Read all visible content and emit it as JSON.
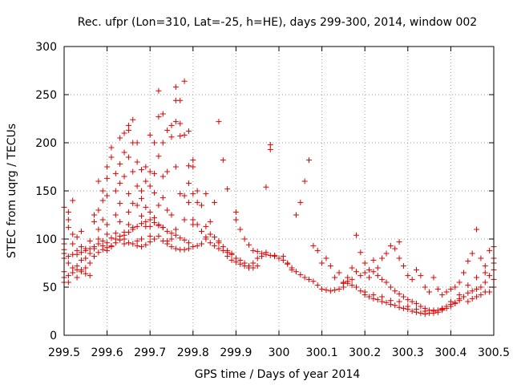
{
  "chart_data": {
    "type": "scatter",
    "title": "Rec. ufpr (Lon=310, Lat=-25, h=HE), days 299-300, 2014, window 002",
    "xlabel": "GPS time / Days of year 2014",
    "ylabel": "STEC from uqrg / TECUs",
    "xlim": [
      299.5,
      300.5
    ],
    "ylim": [
      0,
      300
    ],
    "grid": true,
    "marker": "+",
    "color": "#dd0000",
    "x_ticks": [
      299.5,
      299.6,
      299.7,
      299.8,
      299.9,
      300,
      300.1,
      300.2,
      300.3,
      300.4,
      300.5
    ],
    "x_tick_labels": [
      "299.5",
      "299.6",
      "299.7",
      "299.8",
      "299.9",
      "300",
      "300.1",
      "300.2",
      "300.3",
      "300.4",
      "300.5"
    ],
    "y_ticks": [
      0,
      50,
      100,
      150,
      200,
      250,
      300
    ],
    "y_tick_labels": [
      "0",
      "50",
      "100",
      "150",
      "200",
      "250",
      "300"
    ],
    "points": [
      [
        299.5,
        133
      ],
      [
        299.51,
        128
      ],
      [
        299.51,
        120
      ],
      [
        299.51,
        112
      ],
      [
        299.52,
        140
      ],
      [
        299.5,
        100
      ],
      [
        299.5,
        95
      ],
      [
        299.5,
        89
      ],
      [
        299.5,
        66
      ],
      [
        299.5,
        60
      ],
      [
        299.5,
        55
      ],
      [
        299.51,
        55
      ],
      [
        299.52,
        105
      ],
      [
        299.52,
        95
      ],
      [
        299.53,
        88
      ],
      [
        299.53,
        102
      ],
      [
        299.54,
        108
      ],
      [
        299.54,
        92
      ],
      [
        299.53,
        72
      ],
      [
        299.54,
        78
      ],
      [
        299.52,
        65
      ],
      [
        299.51,
        62
      ],
      [
        299.53,
        60
      ],
      [
        299.54,
        68
      ],
      [
        299.55,
        70
      ],
      [
        299.55,
        80
      ],
      [
        299.56,
        85
      ],
      [
        299.56,
        98
      ],
      [
        299.57,
        125
      ],
      [
        299.57,
        118
      ],
      [
        299.57,
        90
      ],
      [
        299.56,
        75
      ],
      [
        299.55,
        90
      ],
      [
        299.58,
        160
      ],
      [
        299.58,
        130
      ],
      [
        299.58,
        110
      ],
      [
        299.58,
        100
      ],
      [
        299.59,
        150
      ],
      [
        299.59,
        140
      ],
      [
        299.59,
        120
      ],
      [
        299.6,
        175
      ],
      [
        299.6,
        163
      ],
      [
        299.6,
        145
      ],
      [
        299.6,
        115
      ],
      [
        299.6,
        105
      ],
      [
        299.59,
        93
      ],
      [
        299.6,
        88
      ],
      [
        299.61,
        92
      ],
      [
        299.61,
        195
      ],
      [
        299.61,
        185
      ],
      [
        299.62,
        168
      ],
      [
        299.62,
        150
      ],
      [
        299.62,
        125
      ],
      [
        299.62,
        100
      ],
      [
        299.63,
        205
      ],
      [
        299.63,
        178
      ],
      [
        299.63,
        158
      ],
      [
        299.63,
        137
      ],
      [
        299.63,
        118
      ],
      [
        299.64,
        210
      ],
      [
        299.64,
        190
      ],
      [
        299.64,
        165
      ],
      [
        299.64,
        107
      ],
      [
        299.64,
        95
      ],
      [
        299.65,
        213
      ],
      [
        299.65,
        218
      ],
      [
        299.65,
        185
      ],
      [
        299.65,
        147
      ],
      [
        299.65,
        128
      ],
      [
        299.65,
        115
      ],
      [
        299.66,
        224
      ],
      [
        299.66,
        200
      ],
      [
        299.66,
        170
      ],
      [
        299.66,
        137
      ],
      [
        299.66,
        112
      ],
      [
        299.67,
        200
      ],
      [
        299.67,
        180
      ],
      [
        299.67,
        155
      ],
      [
        299.67,
        135
      ],
      [
        299.67,
        98
      ],
      [
        299.68,
        172
      ],
      [
        299.68,
        150
      ],
      [
        299.68,
        142
      ],
      [
        299.68,
        124
      ],
      [
        299.68,
        100
      ],
      [
        299.69,
        175
      ],
      [
        299.69,
        160
      ],
      [
        299.69,
        133
      ],
      [
        299.69,
        113
      ],
      [
        299.7,
        208
      ],
      [
        299.7,
        170
      ],
      [
        299.7,
        155
      ],
      [
        299.7,
        128
      ],
      [
        299.7,
        113
      ],
      [
        299.7,
        103
      ],
      [
        299.71,
        200
      ],
      [
        299.71,
        168
      ],
      [
        299.71,
        148
      ],
      [
        299.71,
        122
      ],
      [
        299.72,
        254
      ],
      [
        299.72,
        227
      ],
      [
        299.72,
        186
      ],
      [
        299.72,
        135
      ],
      [
        299.72,
        115
      ],
      [
        299.73,
        230
      ],
      [
        299.73,
        200
      ],
      [
        299.73,
        165
      ],
      [
        299.73,
        143
      ],
      [
        299.73,
        112
      ],
      [
        299.74,
        213
      ],
      [
        299.74,
        170
      ],
      [
        299.74,
        130
      ],
      [
        299.74,
        98
      ],
      [
        299.75,
        218
      ],
      [
        299.75,
        206
      ],
      [
        299.75,
        125
      ],
      [
        299.75,
        100
      ],
      [
        299.76,
        258
      ],
      [
        299.76,
        244
      ],
      [
        299.76,
        222
      ],
      [
        299.76,
        175
      ],
      [
        299.76,
        110
      ],
      [
        299.77,
        244
      ],
      [
        299.77,
        220
      ],
      [
        299.77,
        207
      ],
      [
        299.77,
        147
      ],
      [
        299.78,
        264
      ],
      [
        299.78,
        208
      ],
      [
        299.78,
        145
      ],
      [
        299.78,
        120
      ],
      [
        299.79,
        212
      ],
      [
        299.79,
        176
      ],
      [
        299.79,
        158
      ],
      [
        299.79,
        138
      ],
      [
        299.8,
        182
      ],
      [
        299.8,
        175
      ],
      [
        299.8,
        147
      ],
      [
        299.8,
        115
      ],
      [
        299.81,
        138
      ],
      [
        299.81,
        150
      ],
      [
        299.82,
        135
      ],
      [
        299.83,
        147
      ],
      [
        299.83,
        113
      ],
      [
        299.84,
        118
      ],
      [
        299.85,
        138
      ],
      [
        299.86,
        222
      ],
      [
        299.86,
        96
      ],
      [
        299.87,
        182
      ],
      [
        299.88,
        152
      ],
      [
        299.88,
        88
      ],
      [
        299.89,
        85
      ],
      [
        299.9,
        128
      ],
      [
        299.9,
        120
      ],
      [
        299.91,
        110
      ],
      [
        299.92,
        100
      ],
      [
        299.93,
        94
      ],
      [
        299.94,
        88
      ],
      [
        299.95,
        87
      ],
      [
        299.96,
        85
      ],
      [
        299.97,
        154
      ],
      [
        299.98,
        198
      ],
      [
        299.98,
        193
      ],
      [
        299.98,
        83
      ],
      [
        299.99,
        83
      ],
      [
        300.01,
        82
      ],
      [
        300.02,
        75
      ],
      [
        300.03,
        68
      ],
      [
        300.04,
        125
      ],
      [
        300.05,
        138
      ],
      [
        300.06,
        160
      ],
      [
        300.07,
        182
      ],
      [
        300.08,
        93
      ],
      [
        300.09,
        88
      ],
      [
        300.1,
        75
      ],
      [
        300.11,
        80
      ],
      [
        300.12,
        72
      ],
      [
        300.13,
        60
      ],
      [
        300.14,
        65
      ],
      [
        300.15,
        55
      ],
      [
        300.16,
        60
      ],
      [
        300.17,
        70
      ],
      [
        300.18,
        104
      ],
      [
        300.19,
        86
      ],
      [
        300.2,
        75
      ],
      [
        300.21,
        60
      ],
      [
        300.22,
        78
      ],
      [
        300.23,
        70
      ],
      [
        300.24,
        80
      ],
      [
        300.25,
        85
      ],
      [
        300.26,
        93
      ],
      [
        300.27,
        90
      ],
      [
        300.28,
        97
      ],
      [
        300.28,
        80
      ],
      [
        300.29,
        72
      ],
      [
        300.3,
        62
      ],
      [
        300.31,
        58
      ],
      [
        300.32,
        68
      ],
      [
        300.33,
        62
      ],
      [
        300.34,
        50
      ],
      [
        300.35,
        45
      ],
      [
        300.36,
        60
      ],
      [
        300.37,
        48
      ],
      [
        300.38,
        42
      ],
      [
        300.39,
        45
      ],
      [
        300.4,
        48
      ],
      [
        300.41,
        50
      ],
      [
        300.42,
        55
      ],
      [
        300.43,
        65
      ],
      [
        300.44,
        77
      ],
      [
        300.45,
        85
      ],
      [
        300.46,
        110
      ],
      [
        300.47,
        80
      ],
      [
        300.48,
        72
      ],
      [
        300.49,
        88
      ],
      [
        300.5,
        92
      ],
      [
        300.5,
        80
      ],
      [
        300.5,
        68
      ],
      [
        300.5,
        58
      ],
      [
        300.5,
        50
      ],
      [
        300.49,
        45
      ],
      [
        300.48,
        45
      ],
      [
        300.47,
        42
      ],
      [
        300.46,
        40
      ],
      [
        300.45,
        38
      ],
      [
        300.44,
        35
      ],
      [
        300.43,
        40
      ],
      [
        300.42,
        38
      ],
      [
        300.41,
        33
      ],
      [
        300.4,
        30
      ],
      [
        300.39,
        28
      ],
      [
        300.38,
        26
      ],
      [
        300.37,
        24
      ],
      [
        300.36,
        23
      ],
      [
        300.35,
        23
      ],
      [
        300.34,
        22
      ],
      [
        300.33,
        23
      ],
      [
        300.32,
        24
      ],
      [
        300.31,
        25
      ],
      [
        300.3,
        27
      ],
      [
        300.29,
        28
      ],
      [
        300.28,
        29
      ],
      [
        300.27,
        31
      ],
      [
        300.26,
        32
      ],
      [
        300.25,
        34
      ],
      [
        300.24,
        35
      ],
      [
        300.23,
        37
      ],
      [
        300.22,
        38
      ],
      [
        300.21,
        40
      ],
      [
        300.2,
        42
      ],
      [
        300.19,
        46
      ],
      [
        300.18,
        50
      ],
      [
        300.17,
        52
      ],
      [
        300.16,
        54
      ],
      [
        300.15,
        50
      ],
      [
        300.14,
        48
      ],
      [
        300.13,
        47
      ],
      [
        300.12,
        46
      ],
      [
        300.11,
        47
      ],
      [
        300.1,
        48
      ],
      [
        300.09,
        52
      ],
      [
        300.08,
        56
      ],
      [
        300.07,
        58
      ],
      [
        300.06,
        60
      ],
      [
        300.05,
        63
      ],
      [
        300.04,
        66
      ],
      [
        300.03,
        70
      ],
      [
        300.02,
        74
      ],
      [
        300.01,
        78
      ],
      [
        300.0,
        80
      ],
      [
        299.99,
        82
      ],
      [
        299.97,
        84
      ],
      [
        299.95,
        72
      ],
      [
        299.94,
        70
      ],
      [
        299.93,
        72
      ],
      [
        299.92,
        75
      ],
      [
        299.91,
        78
      ],
      [
        299.9,
        80
      ],
      [
        299.89,
        84
      ],
      [
        299.88,
        86
      ],
      [
        299.87,
        92
      ],
      [
        299.86,
        98
      ],
      [
        299.85,
        102
      ],
      [
        299.84,
        105
      ],
      [
        299.83,
        100
      ],
      [
        299.82,
        95
      ],
      [
        299.81,
        93
      ],
      [
        299.8,
        92
      ],
      [
        299.79,
        90
      ],
      [
        299.78,
        89
      ],
      [
        299.77,
        89
      ],
      [
        299.76,
        90
      ],
      [
        299.75,
        92
      ],
      [
        299.74,
        95
      ],
      [
        299.73,
        98
      ],
      [
        299.72,
        103
      ],
      [
        299.71,
        100
      ],
      [
        299.7,
        97
      ],
      [
        299.69,
        94
      ],
      [
        299.68,
        92
      ],
      [
        299.67,
        93
      ],
      [
        299.66,
        95
      ],
      [
        299.65,
        96
      ],
      [
        299.64,
        100
      ],
      [
        299.63,
        103
      ],
      [
        299.62,
        106
      ],
      [
        299.61,
        101
      ],
      [
        299.6,
        96
      ],
      [
        299.59,
        98
      ],
      [
        299.58,
        95
      ],
      [
        299.57,
        92
      ],
      [
        299.56,
        90
      ],
      [
        299.55,
        88
      ],
      [
        299.54,
        86
      ],
      [
        299.53,
        84
      ],
      [
        299.52,
        84
      ],
      [
        299.51,
        82
      ],
      [
        299.5,
        80
      ],
      [
        299.5,
        85
      ],
      [
        299.51,
        75
      ],
      [
        299.52,
        70
      ],
      [
        299.53,
        68
      ],
      [
        299.54,
        66
      ],
      [
        299.55,
        64
      ],
      [
        299.56,
        62
      ],
      [
        299.57,
        82
      ],
      [
        299.58,
        86
      ],
      [
        299.59,
        89
      ],
      [
        299.6,
        91
      ],
      [
        299.61,
        93
      ],
      [
        299.62,
        96
      ],
      [
        299.63,
        99
      ],
      [
        299.64,
        104
      ],
      [
        299.65,
        107
      ],
      [
        299.66,
        110
      ],
      [
        299.67,
        113
      ],
      [
        299.68,
        116
      ],
      [
        299.69,
        118
      ],
      [
        299.7,
        120
      ],
      [
        299.71,
        117
      ],
      [
        299.72,
        114
      ],
      [
        299.73,
        112
      ],
      [
        299.74,
        108
      ],
      [
        299.75,
        106
      ],
      [
        299.76,
        104
      ],
      [
        299.77,
        101
      ],
      [
        299.78,
        99
      ],
      [
        299.79,
        96
      ],
      [
        299.8,
        120
      ],
      [
        299.81,
        115
      ],
      [
        299.82,
        108
      ],
      [
        299.83,
        102
      ],
      [
        299.84,
        96
      ],
      [
        299.85,
        93
      ],
      [
        299.86,
        90
      ],
      [
        299.87,
        88
      ],
      [
        299.88,
        82
      ],
      [
        299.89,
        78
      ],
      [
        299.9,
        76
      ],
      [
        299.91,
        74
      ],
      [
        299.92,
        72
      ],
      [
        299.93,
        70
      ],
      [
        299.94,
        75
      ],
      [
        299.95,
        80
      ],
      [
        299.96,
        82
      ],
      [
        299.97,
        86
      ],
      [
        300.2,
        45
      ],
      [
        300.22,
        42
      ],
      [
        300.24,
        40
      ],
      [
        300.26,
        36
      ],
      [
        300.28,
        35
      ],
      [
        300.3,
        30
      ],
      [
        300.32,
        27
      ],
      [
        300.34,
        25
      ],
      [
        300.36,
        26
      ],
      [
        300.38,
        27
      ],
      [
        300.4,
        35
      ],
      [
        300.42,
        42
      ],
      [
        300.44,
        52
      ],
      [
        300.46,
        60
      ],
      [
        300.48,
        65
      ],
      [
        300.5,
        75
      ],
      [
        300.49,
        62
      ],
      [
        300.48,
        55
      ],
      [
        300.47,
        50
      ],
      [
        300.46,
        48
      ],
      [
        300.45,
        46
      ],
      [
        300.44,
        44
      ],
      [
        300.43,
        40
      ],
      [
        300.42,
        36
      ],
      [
        300.41,
        34
      ],
      [
        300.4,
        32
      ],
      [
        300.39,
        30
      ],
      [
        300.38,
        28
      ],
      [
        300.37,
        26
      ],
      [
        300.36,
        25
      ],
      [
        300.35,
        26
      ],
      [
        300.34,
        28
      ],
      [
        300.33,
        30
      ],
      [
        300.32,
        33
      ],
      [
        300.31,
        35
      ],
      [
        300.3,
        37
      ],
      [
        300.29,
        40
      ],
      [
        300.28,
        43
      ],
      [
        300.27,
        46
      ],
      [
        300.26,
        50
      ],
      [
        300.25,
        55
      ],
      [
        300.24,
        58
      ],
      [
        300.23,
        62
      ],
      [
        300.22,
        66
      ],
      [
        300.21,
        68
      ],
      [
        300.2,
        65
      ],
      [
        300.19,
        62
      ],
      [
        300.18,
        66
      ],
      [
        300.17,
        58
      ],
      [
        300.16,
        56
      ],
      [
        300.15,
        54
      ]
    ]
  }
}
